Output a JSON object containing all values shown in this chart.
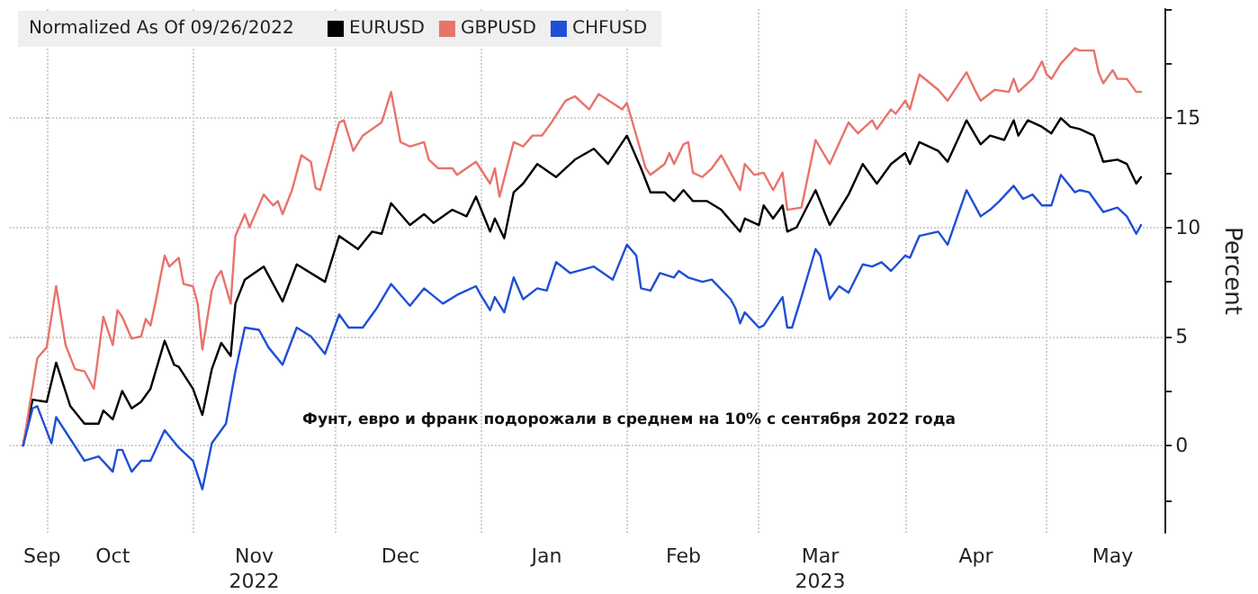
{
  "chart_data": {
    "type": "line",
    "legend_title": "Normalized As Of 09/26/2022",
    "ylabel": "Percent",
    "annotations": [
      "Фунт, евро и франк подорожали в среднем на 10% с сентября 2022 года"
    ],
    "xlim": [
      "2022-09-23",
      "2023-05-26"
    ],
    "xticks": [
      {
        "value": "2022-09-30",
        "label": "Sep"
      },
      {
        "value": "2022-10-15",
        "label": "Oct"
      },
      {
        "value": "2022-11-14",
        "label": "Nov\n2022"
      },
      {
        "value": "2022-12-15",
        "label": "Dec"
      },
      {
        "value": "2023-01-15",
        "label": "Jan"
      },
      {
        "value": "2023-02-13",
        "label": "Feb"
      },
      {
        "value": "2023-03-14",
        "label": "Mar\n2023"
      },
      {
        "value": "2023-04-16",
        "label": "Apr"
      },
      {
        "value": "2023-05-15",
        "label": "May"
      },
      {
        "value": "2022-10-01",
        "label": null
      },
      {
        "value": "2022-11-01",
        "label": null
      },
      {
        "value": "2022-12-01",
        "label": null
      },
      {
        "value": "2023-01-01",
        "label": null
      },
      {
        "value": "2023-02-01",
        "label": null
      },
      {
        "value": "2023-03-01",
        "label": null
      },
      {
        "value": "2023-04-01",
        "label": null
      },
      {
        "value": "2023-05-01",
        "label": null
      }
    ],
    "ylim": [
      -4,
      20
    ],
    "yticks": [
      0,
      5,
      10,
      15,
      {
        "value": -2.5,
        "label": null
      },
      {
        "value": 2.5,
        "label": null
      },
      {
        "value": 7.5,
        "label": null
      },
      {
        "value": 12.5,
        "label": null
      },
      {
        "value": 17.5,
        "label": null
      },
      {
        "value": 20,
        "label": null
      }
    ],
    "grid": true,
    "legend": "top left",
    "marker": "none",
    "line_style": "solid",
    "series": [
      {
        "name": "EURUSD",
        "color": "#000000",
        "x": [
          "2022-09-26",
          "2022-09-28",
          "2022-10-01",
          "2022-10-03",
          "2022-10-06",
          "2022-10-09",
          "2022-10-12",
          "2022-10-13",
          "2022-10-15",
          "2022-10-17",
          "2022-10-19",
          "2022-10-21",
          "2022-10-23",
          "2022-10-26",
          "2022-10-28",
          "2022-10-29",
          "2022-11-01",
          "2022-11-03",
          "2022-11-05",
          "2022-11-07",
          "2022-11-09",
          "2022-11-10",
          "2022-11-12",
          "2022-11-16",
          "2022-11-20",
          "2022-11-23",
          "2022-11-29",
          "2022-12-02",
          "2022-12-06",
          "2022-12-09",
          "2022-12-11",
          "2022-12-13",
          "2022-12-17",
          "2022-12-20",
          "2022-12-22",
          "2022-12-26",
          "2022-12-29",
          "2022-12-31",
          "2023-01-03",
          "2023-01-04",
          "2023-01-06",
          "2023-01-08",
          "2023-01-10",
          "2023-01-13",
          "2023-01-17",
          "2023-01-21",
          "2023-01-25",
          "2023-01-28",
          "2023-02-01",
          "2023-02-04",
          "2023-02-06",
          "2023-02-09",
          "2023-02-11",
          "2023-02-13",
          "2023-02-15",
          "2023-02-18",
          "2023-02-21",
          "2023-02-25",
          "2023-02-26",
          "2023-03-01",
          "2023-03-02",
          "2023-03-04",
          "2023-03-06",
          "2023-03-07",
          "2023-03-09",
          "2023-03-13",
          "2023-03-16",
          "2023-03-20",
          "2023-03-23",
          "2023-03-26",
          "2023-03-29",
          "2023-04-01",
          "2023-04-02",
          "2023-04-04",
          "2023-04-08",
          "2023-04-10",
          "2023-04-14",
          "2023-04-17",
          "2023-04-19",
          "2023-04-22",
          "2023-04-24",
          "2023-04-25",
          "2023-04-27",
          "2023-04-30",
          "2023-05-02",
          "2023-05-04",
          "2023-05-06",
          "2023-05-08",
          "2023-05-11",
          "2023-05-13",
          "2023-05-16",
          "2023-05-18",
          "2023-05-20",
          "2023-05-21"
        ],
        "values": [
          0,
          2.1,
          2.0,
          3.8,
          1.8,
          1.0,
          1.0,
          1.6,
          1.2,
          2.5,
          1.7,
          2.0,
          2.6,
          4.8,
          3.7,
          3.6,
          2.6,
          1.4,
          3.5,
          4.7,
          4.1,
          6.5,
          7.6,
          8.2,
          6.6,
          8.3,
          7.5,
          9.6,
          9.0,
          9.8,
          9.7,
          11.1,
          10.1,
          10.6,
          10.2,
          10.8,
          10.5,
          11.4,
          9.8,
          10.4,
          9.5,
          11.6,
          12.0,
          12.9,
          12.3,
          13.1,
          13.6,
          12.9,
          14.2,
          12.7,
          11.6,
          11.6,
          11.2,
          11.7,
          11.2,
          11.2,
          10.8,
          9.8,
          10.4,
          10.1,
          11.0,
          10.4,
          11.0,
          9.8,
          10.0,
          11.7,
          10.1,
          11.5,
          12.9,
          12.0,
          12.9,
          13.4,
          12.9,
          13.9,
          13.5,
          13.0,
          14.9,
          13.8,
          14.2,
          14.0,
          14.9,
          14.2,
          14.9,
          14.6,
          14.3,
          15.0,
          14.6,
          14.5,
          14.2,
          13.0,
          13.1,
          12.9,
          12.0,
          12.3
        ]
      },
      {
        "name": "GBPUSD",
        "color": "#e8736c",
        "x": [
          "2022-09-26",
          "2022-09-29",
          "2022-10-01",
          "2022-10-03",
          "2022-10-05",
          "2022-10-07",
          "2022-10-09",
          "2022-10-11",
          "2022-10-13",
          "2022-10-15",
          "2022-10-16",
          "2022-10-17",
          "2022-10-19",
          "2022-10-21",
          "2022-10-22",
          "2022-10-23",
          "2022-10-24",
          "2022-10-26",
          "2022-10-27",
          "2022-10-29",
          "2022-10-30",
          "2022-11-01",
          "2022-11-02",
          "2022-11-03",
          "2022-11-05",
          "2022-11-06",
          "2022-11-07",
          "2022-11-09",
          "2022-11-10",
          "2022-11-12",
          "2022-11-13",
          "2022-11-16",
          "2022-11-18",
          "2022-11-19",
          "2022-11-20",
          "2022-11-22",
          "2022-11-24",
          "2022-11-26",
          "2022-11-27",
          "2022-11-28",
          "2022-12-02",
          "2022-12-03",
          "2022-12-05",
          "2022-12-07",
          "2022-12-11",
          "2022-12-13",
          "2022-12-15",
          "2022-12-17",
          "2022-12-20",
          "2022-12-21",
          "2022-12-23",
          "2022-12-26",
          "2022-12-27",
          "2022-12-31",
          "2023-01-03",
          "2023-01-04",
          "2023-01-05",
          "2023-01-08",
          "2023-01-10",
          "2023-01-12",
          "2023-01-14",
          "2023-01-16",
          "2023-01-19",
          "2023-01-21",
          "2023-01-24",
          "2023-01-26",
          "2023-01-31",
          "2023-02-01",
          "2023-02-05",
          "2023-02-06",
          "2023-02-09",
          "2023-02-10",
          "2023-02-11",
          "2023-02-13",
          "2023-02-14",
          "2023-02-15",
          "2023-02-17",
          "2023-02-19",
          "2023-02-21",
          "2023-02-23",
          "2023-02-25",
          "2023-02-26",
          "2023-02-28",
          "2023-03-02",
          "2023-03-04",
          "2023-03-06",
          "2023-03-07",
          "2023-03-10",
          "2023-03-13",
          "2023-03-16",
          "2023-03-20",
          "2023-03-22",
          "2023-03-25",
          "2023-03-26",
          "2023-03-29",
          "2023-03-30",
          "2023-04-01",
          "2023-04-02",
          "2023-04-04",
          "2023-04-08",
          "2023-04-10",
          "2023-04-14",
          "2023-04-16",
          "2023-04-17",
          "2023-04-20",
          "2023-04-23",
          "2023-04-24",
          "2023-04-25",
          "2023-04-28",
          "2023-04-30",
          "2023-05-01",
          "2023-05-02",
          "2023-05-04",
          "2023-05-07",
          "2023-05-08",
          "2023-05-11",
          "2023-05-12",
          "2023-05-13",
          "2023-05-15",
          "2023-05-16",
          "2023-05-18",
          "2023-05-20",
          "2023-05-21"
        ],
        "values": [
          0,
          4.0,
          4.5,
          7.3,
          4.6,
          3.5,
          3.4,
          2.6,
          5.9,
          4.6,
          6.2,
          5.9,
          4.9,
          5.0,
          5.8,
          5.5,
          6.5,
          8.7,
          8.2,
          8.6,
          7.4,
          7.3,
          6.5,
          4.4,
          7.1,
          7.7,
          8.0,
          6.5,
          9.6,
          10.6,
          10.0,
          11.5,
          11.0,
          11.2,
          10.6,
          11.7,
          13.3,
          13.0,
          11.8,
          11.7,
          14.8,
          14.9,
          13.5,
          14.2,
          14.8,
          16.2,
          13.9,
          13.7,
          13.9,
          13.1,
          12.7,
          12.7,
          12.4,
          13.0,
          12.0,
          12.7,
          11.4,
          13.9,
          13.7,
          14.2,
          14.2,
          14.8,
          15.8,
          16.0,
          15.4,
          16.1,
          15.4,
          15.7,
          12.7,
          12.4,
          12.9,
          13.4,
          12.9,
          13.8,
          13.9,
          12.5,
          12.3,
          12.7,
          13.3,
          12.5,
          11.7,
          12.9,
          12.4,
          12.5,
          11.7,
          12.5,
          10.8,
          10.9,
          14.0,
          12.9,
          14.8,
          14.3,
          14.9,
          14.5,
          15.4,
          15.2,
          15.8,
          15.4,
          17.0,
          16.3,
          15.8,
          17.1,
          16.2,
          15.8,
          16.3,
          16.2,
          16.8,
          16.2,
          16.8,
          17.6,
          17.0,
          16.8,
          17.5,
          18.2,
          18.1,
          18.1,
          17.1,
          16.6,
          17.2,
          16.8,
          16.8,
          16.2,
          16.2
        ]
      },
      {
        "name": "CHFUSD",
        "color": "#1f4fd6",
        "x": [
          "2022-09-26",
          "2022-09-28",
          "2022-09-29",
          "2022-10-02",
          "2022-10-03",
          "2022-10-06",
          "2022-10-09",
          "2022-10-12",
          "2022-10-15",
          "2022-10-16",
          "2022-10-17",
          "2022-10-19",
          "2022-10-21",
          "2022-10-23",
          "2022-10-26",
          "2022-10-29",
          "2022-11-01",
          "2022-11-03",
          "2022-11-05",
          "2022-11-07",
          "2022-11-08",
          "2022-11-10",
          "2022-11-12",
          "2022-11-15",
          "2022-11-17",
          "2022-11-20",
          "2022-11-23",
          "2022-11-26",
          "2022-11-29",
          "2022-12-02",
          "2022-12-04",
          "2022-12-07",
          "2022-12-10",
          "2022-12-13",
          "2022-12-17",
          "2022-12-20",
          "2022-12-24",
          "2022-12-27",
          "2022-12-31",
          "2023-01-01",
          "2023-01-03",
          "2023-01-04",
          "2023-01-06",
          "2023-01-08",
          "2023-01-10",
          "2023-01-13",
          "2023-01-15",
          "2023-01-17",
          "2023-01-20",
          "2023-01-25",
          "2023-01-29",
          "2023-02-01",
          "2023-02-03",
          "2023-02-04",
          "2023-02-06",
          "2023-02-08",
          "2023-02-11",
          "2023-02-12",
          "2023-02-14",
          "2023-02-17",
          "2023-02-19",
          "2023-02-23",
          "2023-02-24",
          "2023-02-25",
          "2023-02-26",
          "2023-03-01",
          "2023-03-02",
          "2023-03-06",
          "2023-03-07",
          "2023-03-08",
          "2023-03-10",
          "2023-03-13",
          "2023-03-14",
          "2023-03-16",
          "2023-03-18",
          "2023-03-20",
          "2023-03-23",
          "2023-03-25",
          "2023-03-27",
          "2023-03-29",
          "2023-04-01",
          "2023-04-02",
          "2023-04-04",
          "2023-04-08",
          "2023-04-10",
          "2023-04-14",
          "2023-04-17",
          "2023-04-19",
          "2023-04-21",
          "2023-04-24",
          "2023-04-26",
          "2023-04-28",
          "2023-04-30",
          "2023-05-02",
          "2023-05-04",
          "2023-05-07",
          "2023-05-08",
          "2023-05-10",
          "2023-05-13",
          "2023-05-16",
          "2023-05-18",
          "2023-05-20",
          "2023-05-21"
        ],
        "values": [
          0,
          1.7,
          1.8,
          0.1,
          1.3,
          0.3,
          -0.7,
          -0.5,
          -1.2,
          -0.2,
          -0.2,
          -1.2,
          -0.7,
          -0.7,
          0.7,
          -0.1,
          -0.7,
          -2.0,
          0.1,
          0.7,
          1.0,
          3.4,
          5.4,
          5.3,
          4.5,
          3.7,
          5.4,
          5.0,
          4.2,
          6.0,
          5.4,
          5.4,
          6.3,
          7.4,
          6.4,
          7.2,
          6.5,
          6.9,
          7.3,
          6.9,
          6.2,
          6.8,
          6.1,
          7.7,
          6.7,
          7.2,
          7.1,
          8.4,
          7.9,
          8.2,
          7.6,
          9.2,
          8.7,
          7.2,
          7.1,
          7.9,
          7.7,
          8.0,
          7.7,
          7.5,
          7.6,
          6.7,
          6.3,
          5.6,
          6.1,
          5.4,
          5.5,
          6.8,
          5.4,
          5.4,
          6.8,
          9.0,
          8.7,
          6.7,
          7.3,
          7.0,
          8.3,
          8.2,
          8.4,
          8.0,
          8.7,
          8.6,
          9.6,
          9.8,
          9.2,
          11.7,
          10.5,
          10.8,
          11.2,
          11.9,
          11.3,
          11.5,
          11.0,
          11.0,
          12.4,
          11.6,
          11.7,
          11.6,
          10.7,
          10.9,
          10.5,
          9.7,
          10.1
        ]
      }
    ]
  }
}
